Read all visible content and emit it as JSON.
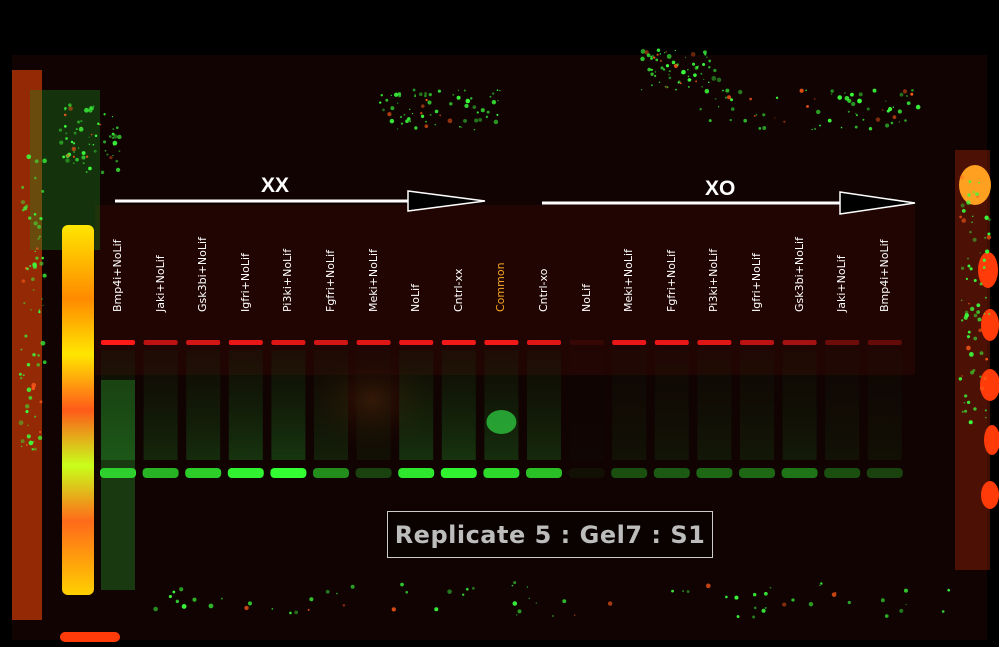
{
  "groups": {
    "left": "XX",
    "right": "XO"
  },
  "lanes": [
    {
      "label": "Bmp4i+NoLif",
      "color": "#ffffff",
      "red": 1,
      "green": 0.9
    },
    {
      "label": "Jaki+NoLif",
      "color": "#ffffff",
      "red": 0.7,
      "green": 0.7
    },
    {
      "label": "Gsk3bi+NoLif",
      "color": "#ffffff",
      "red": 0.8,
      "green": 0.8
    },
    {
      "label": "Igfri+NoLif",
      "color": "#ffffff",
      "red": 0.9,
      "green": 0.95
    },
    {
      "label": "Pi3ki+NoLif",
      "color": "#ffffff",
      "red": 0.85,
      "green": 1
    },
    {
      "label": "Fgfri+NoLif",
      "color": "#ffffff",
      "red": 0.8,
      "green": 0.55
    },
    {
      "label": "Meki+NoLif",
      "color": "#ffffff",
      "red": 0.85,
      "green": 0.25
    },
    {
      "label": "NoLif",
      "color": "#ffffff",
      "red": 0.9,
      "green": 0.9
    },
    {
      "label": "Cntrl-xx",
      "color": "#ffffff",
      "red": 0.95,
      "green": 0.95
    },
    {
      "label": "Common",
      "color": "#f5a623",
      "red": 0.95,
      "green": 0.85
    },
    {
      "label": "Cntrl-xo",
      "color": "#ffffff",
      "red": 0.85,
      "green": 0.75
    },
    {
      "label": "NoLif",
      "color": "#ffffff",
      "red": 0.1,
      "green": 0.05
    },
    {
      "label": "Meki+NoLif",
      "color": "#ffffff",
      "red": 0.9,
      "green": 0.3
    },
    {
      "label": "Fgfri+NoLif",
      "color": "#ffffff",
      "red": 0.9,
      "green": 0.35
    },
    {
      "label": "Pi3ki+NoLif",
      "color": "#ffffff",
      "red": 0.85,
      "green": 0.4
    },
    {
      "label": "Igfri+NoLif",
      "color": "#ffffff",
      "red": 0.7,
      "green": 0.4
    },
    {
      "label": "Gsk3bi+NoLif",
      "color": "#ffffff",
      "red": 0.6,
      "green": 0.45
    },
    {
      "label": "Jaki+NoLif",
      "color": "#ffffff",
      "red": 0.35,
      "green": 0.3
    },
    {
      "label": "Bmp4i+NoLif",
      "color": "#ffffff",
      "red": 0.3,
      "green": 0.25
    }
  ],
  "caption": "Replicate 5 : Gel7 : S1",
  "colors": {
    "background": "#000000",
    "band_red": "#ff1a1a",
    "band_green": "#33ff33",
    "highlight_orange": "#f5a623"
  }
}
